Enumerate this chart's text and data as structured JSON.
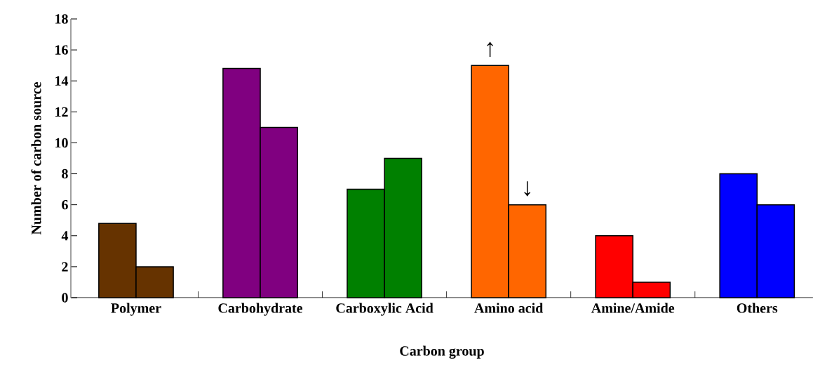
{
  "chart_data": {
    "type": "bar",
    "categories": [
      "Polymer",
      "Carbohydrate",
      "Carboxylic Acid",
      "Amino acid",
      "Amine/Amide",
      "Others"
    ],
    "series": [
      {
        "values": [
          4.8,
          14.8,
          7,
          15,
          4,
          8
        ],
        "colors": [
          "#663300",
          "#800080",
          "#008000",
          "#ff6600",
          "#ff0000",
          "#0000ff"
        ]
      },
      {
        "values": [
          2,
          11,
          9,
          6,
          1,
          6
        ],
        "colors": [
          "#663300",
          "#800080",
          "#008000",
          "#ff6600",
          "#ff0000",
          "#0000ff"
        ]
      }
    ],
    "xlabel": "Carbon group",
    "ylabel": "Number of carbon source",
    "ylim": [
      0,
      18
    ],
    "yticks": [
      0,
      2,
      4,
      6,
      8,
      10,
      12,
      14,
      16,
      18
    ],
    "annotations": [
      {
        "text": "↑",
        "x": "Amino acid",
        "y": 15
      },
      {
        "text": "↓",
        "x": "Amino acid",
        "y": 6
      }
    ]
  }
}
